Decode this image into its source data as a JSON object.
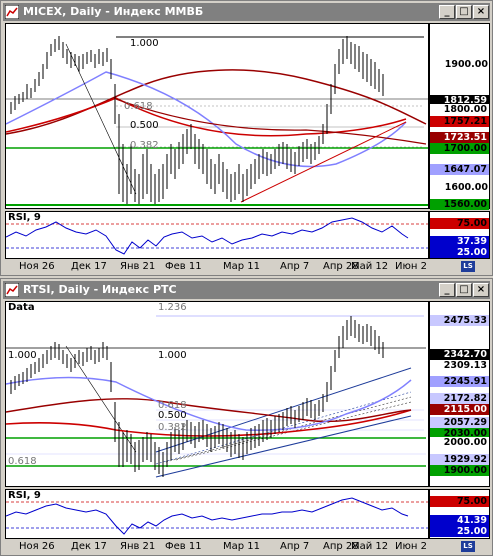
{
  "window1": {
    "title": "MICEX, Daily - Индекс ММВБ",
    "price_panel": {
      "fib_labels": [
        "1.000",
        "0.618",
        "0.500",
        "0.382"
      ],
      "axis_ticks": [
        "1900.00",
        "1600.00"
      ],
      "tags": [
        {
          "text": "1812.59",
          "bg": "#000000",
          "fg": "#ffffff"
        },
        {
          "text": "1800.00",
          "bg": "#ffffff",
          "fg": "#000000"
        },
        {
          "text": "1757.21",
          "bg": "#cc0000",
          "fg": "#000000"
        },
        {
          "text": "1723.51",
          "bg": "#990000",
          "fg": "#ffffff"
        },
        {
          "text": "1700.00",
          "bg": "#00a000",
          "fg": "#000000"
        },
        {
          "text": "1647.07",
          "bg": "#a0a0ff",
          "fg": "#000000"
        },
        {
          "text": "1560.00",
          "bg": "#00a000",
          "fg": "#000000"
        }
      ]
    },
    "rsi_panel": {
      "label": "RSI, 9",
      "tags": [
        {
          "text": "75.00",
          "bg": "#cc0000",
          "fg": "#000000"
        },
        {
          "text": "37.39",
          "bg": "#0000cc",
          "fg": "#ffffff"
        },
        {
          "text": "25.00",
          "bg": "#0000cc",
          "fg": "#ffffff"
        }
      ]
    },
    "dates": [
      "Ноя 26",
      "Дек 17",
      "Янв 21",
      "Фев 11",
      "Мар 11",
      "Апр 7",
      "Апр 28",
      "Май 12",
      "Июн 2"
    ]
  },
  "window2": {
    "title": "RTSI, Daily - Индекс РТС",
    "price_panel": {
      "data_label": "Data",
      "fib_labels": [
        "1.236",
        "1.000",
        "1.000",
        "0.618",
        "0.500",
        "0.382",
        "0.618"
      ],
      "tags": [
        {
          "text": "2475.33",
          "bg": "#c8c8ff",
          "fg": "#000000"
        },
        {
          "text": "2342.70",
          "bg": "#000000",
          "fg": "#ffffff"
        },
        {
          "text": "2309.13",
          "bg": "#ffffff",
          "fg": "#000000"
        },
        {
          "text": "2245.91",
          "bg": "#a0a0ff",
          "fg": "#000000"
        },
        {
          "text": "2172.82",
          "bg": "#c8c8ff",
          "fg": "#000000"
        },
        {
          "text": "2115.00",
          "bg": "#990000",
          "fg": "#ffffff"
        },
        {
          "text": "2057.29",
          "bg": "#c8c8ff",
          "fg": "#000000"
        },
        {
          "text": "2030.00",
          "bg": "#00a000",
          "fg": "#000000"
        },
        {
          "text": "2000.00",
          "bg": "#ffffff",
          "fg": "#000000"
        },
        {
          "text": "1929.92",
          "bg": "#c8c8ff",
          "fg": "#000000"
        },
        {
          "text": "1900.00",
          "bg": "#00a000",
          "fg": "#000000"
        }
      ]
    },
    "rsi_panel": {
      "label": "RSI, 9",
      "tags": [
        {
          "text": "75.00",
          "bg": "#cc0000",
          "fg": "#000000"
        },
        {
          "text": "41.39",
          "bg": "#0000cc",
          "fg": "#ffffff"
        },
        {
          "text": "25.00",
          "bg": "#0000cc",
          "fg": "#ffffff"
        }
      ]
    },
    "dates": [
      "Ноя 26",
      "Дек 17",
      "Янв 21",
      "Фев 11",
      "Мар 11",
      "Апр 7",
      "Апр 28",
      "Май 12",
      "Июн 2"
    ]
  },
  "window_buttons": {
    "minimize": "_",
    "maximize": "□",
    "close": "×"
  },
  "scroll_badge": "LS"
}
